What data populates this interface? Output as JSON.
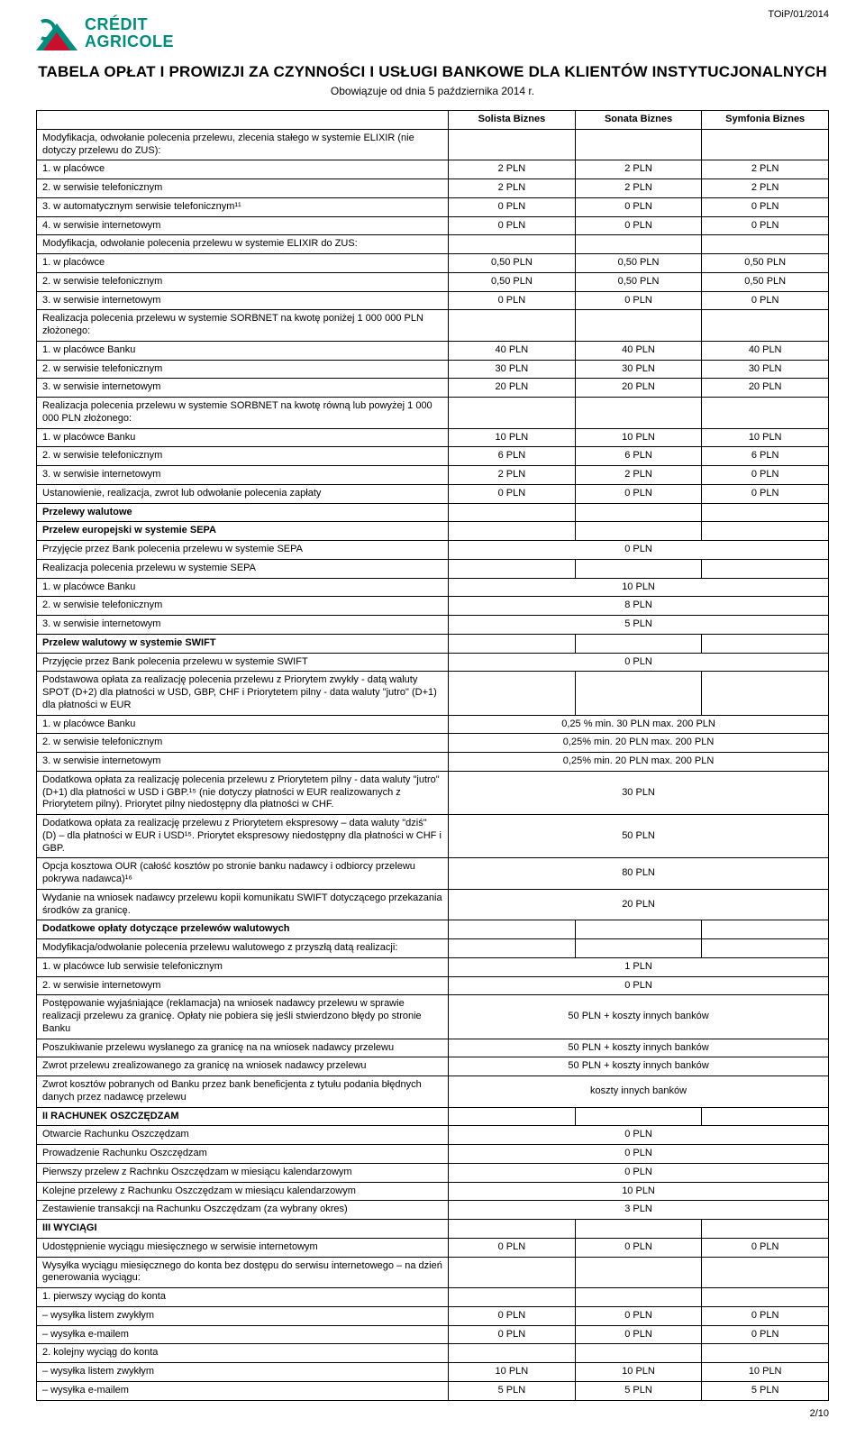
{
  "docref": "TOiP/01/2014",
  "logo": {
    "line1": "CRÉDIT",
    "line2": "AGRICOLE",
    "green": "#008b7d",
    "red": "#c8102e"
  },
  "title": "TABELA OPŁAT I PROWIZJI ZA CZYNNOŚCI I USŁUGI BANKOWE DLA KLIENTÓW INSTYTUCJONALNYCH",
  "subtitle": "Obowiązuje od dnia 5 października 2014 r.",
  "columns": [
    "Solista Biznes",
    "Sonata Biznes",
    "Symfonia Biznes"
  ],
  "rows": [
    {
      "type": "group",
      "desc": "Modyfikacja, odwołanie polecenia przelewu, zlecenia stałego w systemie ELIXIR (nie dotyczy przelewu do ZUS):"
    },
    {
      "type": "row",
      "desc": "1.  w placówce",
      "v": [
        "2 PLN",
        "2 PLN",
        "2 PLN"
      ]
    },
    {
      "type": "row",
      "desc": "2.  w serwisie telefonicznym",
      "v": [
        "2 PLN",
        "2 PLN",
        "2 PLN"
      ]
    },
    {
      "type": "row",
      "desc": "3.  w automatycznym serwisie telefonicznym¹¹",
      "v": [
        "0 PLN",
        "0 PLN",
        "0 PLN"
      ]
    },
    {
      "type": "row",
      "desc": "4.  w serwisie internetowym",
      "v": [
        "0 PLN",
        "0 PLN",
        "0 PLN"
      ]
    },
    {
      "type": "group",
      "desc": "Modyfikacja, odwołanie polecenia przelewu w systemie ELIXIR do ZUS:"
    },
    {
      "type": "row",
      "desc": "1.  w placówce",
      "v": [
        "0,50 PLN",
        "0,50 PLN",
        "0,50 PLN"
      ]
    },
    {
      "type": "row",
      "desc": "2.  w serwisie telefonicznym",
      "v": [
        "0,50 PLN",
        "0,50 PLN",
        "0,50 PLN"
      ]
    },
    {
      "type": "row",
      "desc": "3.  w serwisie internetowym",
      "v": [
        "0 PLN",
        "0 PLN",
        "0 PLN"
      ]
    },
    {
      "type": "group",
      "desc": "Realizacja polecenia przelewu w systemie SORBNET na kwotę poniżej 1 000 000 PLN złożonego:"
    },
    {
      "type": "row",
      "desc": "1.  w placówce Banku",
      "v": [
        "40 PLN",
        "40 PLN",
        "40 PLN"
      ]
    },
    {
      "type": "row",
      "desc": "2.  w serwisie telefonicznym",
      "v": [
        "30 PLN",
        "30 PLN",
        "30 PLN"
      ]
    },
    {
      "type": "row",
      "desc": "3.  w serwisie internetowym",
      "v": [
        "20 PLN",
        "20 PLN",
        "20 PLN"
      ]
    },
    {
      "type": "group",
      "desc": "Realizacja polecenia przelewu w systemie SORBNET na kwotę równą lub powyżej 1 000 000 PLN złożonego:"
    },
    {
      "type": "row",
      "desc": "1.  w placówce Banku",
      "v": [
        "10 PLN",
        "10 PLN",
        "10 PLN"
      ]
    },
    {
      "type": "row",
      "desc": "2.  w serwisie telefonicznym",
      "v": [
        "6 PLN",
        "6 PLN",
        "6 PLN"
      ]
    },
    {
      "type": "row",
      "desc": "3.  w serwisie internetowym",
      "v": [
        "2 PLN",
        "2 PLN",
        "0 PLN"
      ]
    },
    {
      "type": "row",
      "desc": "Ustanowienie, realizacja, zwrot lub odwołanie polecenia zapłaty",
      "v": [
        "0 PLN",
        "0 PLN",
        "0 PLN"
      ]
    },
    {
      "type": "section",
      "desc": "Przelewy walutowe"
    },
    {
      "type": "section",
      "desc": "Przelew europejski w systemie SEPA"
    },
    {
      "type": "merged",
      "desc": "Przyjęcie przez Bank polecenia przelewu w systemie SEPA",
      "m": "0 PLN"
    },
    {
      "type": "group",
      "desc": "Realizacja polecenia przelewu w systemie SEPA"
    },
    {
      "type": "merged",
      "desc": "1.  w placówce Banku",
      "m": "10 PLN"
    },
    {
      "type": "merged",
      "desc": "2.  w serwisie telefonicznym",
      "m": "8 PLN"
    },
    {
      "type": "merged",
      "desc": "3.  w serwisie internetowym",
      "m": "5 PLN"
    },
    {
      "type": "section",
      "desc": "Przelew walutowy w systemie SWIFT"
    },
    {
      "type": "merged",
      "desc": "Przyjęcie przez Bank polecenia przelewu w systemie SWIFT",
      "m": "0 PLN"
    },
    {
      "type": "group",
      "desc": "Podstawowa opłata za realizację polecenia przelewu z Priorytem zwykły - datą waluty SPOT (D+2) dla płatności w USD, GBP, CHF i Priorytetem pilny - data waluty \"jutro\" (D+1) dla płatności w EUR"
    },
    {
      "type": "merged",
      "desc": "1.  w placówce Banku",
      "m": "0,25 % min. 30 PLN max. 200 PLN"
    },
    {
      "type": "merged",
      "desc": "2.  w serwisie telefonicznym",
      "m": "0,25% min. 20 PLN max. 200 PLN"
    },
    {
      "type": "merged",
      "desc": "3.  w serwisie internetowym",
      "m": "0,25% min. 20 PLN max. 200 PLN"
    },
    {
      "type": "merged",
      "desc": "Dodatkowa opłata za realizację polecenia przelewu z Priorytetem pilny - data waluty \"jutro\" (D+1) dla płatności w USD i GBP.¹⁵ (nie dotyczy płatności w EUR realizowanych z Priorytetem pilny). Priorytet pilny niedostępny dla płatności w CHF.",
      "m": "30 PLN"
    },
    {
      "type": "merged",
      "desc": "Dodatkowa opłata za realizację przelewu z Priorytetem ekspresowy – data waluty \"dziś\" (D) – dla płatności w EUR i USD¹⁵. Priorytet ekspresowy niedostępny dla płatności w CHF i GBP.",
      "m": "50 PLN"
    },
    {
      "type": "merged",
      "desc": "Opcja kosztowa OUR (całość kosztów po stronie banku nadawcy i odbiorcy przelewu pokrywa nadawca)¹⁶",
      "m": "80 PLN"
    },
    {
      "type": "merged",
      "desc": "Wydanie na wniosek nadawcy przelewu kopii komunikatu SWIFT dotyczącego przekazania środków za granicę.",
      "m": "20 PLN"
    },
    {
      "type": "section",
      "desc": "Dodatkowe opłaty dotyczące przelewów walutowych"
    },
    {
      "type": "group",
      "desc": "Modyfikacja/odwołanie polecenia przelewu walutowego z przyszłą datą realizacji:"
    },
    {
      "type": "merged",
      "desc": "1.  w placówce lub serwisie telefonicznym",
      "m": "1 PLN"
    },
    {
      "type": "merged",
      "desc": "2.  w serwisie internetowym",
      "m": "0 PLN"
    },
    {
      "type": "merged",
      "desc": "Postępowanie wyjaśniające (reklamacja) na wniosek nadawcy przelewu w sprawie realizacji przelewu za granicę. Opłaty nie pobiera się jeśli stwierdzono błędy po stronie Banku",
      "m": "50 PLN + koszty innych banków"
    },
    {
      "type": "merged",
      "desc": "Poszukiwanie przelewu wysłanego za granicę na na wniosek nadawcy przelewu",
      "m": "50 PLN + koszty innych banków"
    },
    {
      "type": "merged",
      "desc": "Zwrot przelewu zrealizowanego za granicę na wniosek nadawcy przelewu",
      "m": "50 PLN + koszty innych banków"
    },
    {
      "type": "merged",
      "desc": "Zwrot kosztów pobranych od Banku przez bank beneficjenta z tytułu podania błędnych danych przez nadawcę przelewu",
      "m": "koszty innych banków"
    },
    {
      "type": "section",
      "desc": "II RACHUNEK OSZCZĘDZAM"
    },
    {
      "type": "merged",
      "desc": "Otwarcie Rachunku Oszczędzam",
      "m": "0 PLN"
    },
    {
      "type": "merged",
      "desc": "Prowadzenie Rachunku Oszczędzam",
      "m": "0 PLN"
    },
    {
      "type": "merged",
      "desc": "Pierwszy przelew z Rachnku Oszczędzam w miesiącu kalendarzowym",
      "m": "0 PLN"
    },
    {
      "type": "merged",
      "desc": "Kolejne przelewy z Rachunku Oszczędzam w miesiącu kalendarzowym",
      "m": "10 PLN"
    },
    {
      "type": "merged",
      "desc": "Zestawienie transakcji na Rachunku Oszczędzam (za wybrany okres)",
      "m": "3 PLN"
    },
    {
      "type": "section",
      "desc": "III WYCIĄGI"
    },
    {
      "type": "row",
      "desc": "Udostępnienie wyciągu miesięcznego w serwisie internetowym",
      "v": [
        "0 PLN",
        "0 PLN",
        "0 PLN"
      ]
    },
    {
      "type": "group",
      "desc": "Wysyłka wyciągu miesięcznego do konta bez dostępu do serwisu internetowego – na dzień generowania wyciągu:"
    },
    {
      "type": "group",
      "desc": "1.  pierwszy wyciąg do konta"
    },
    {
      "type": "row",
      "desc": "     –    wysyłka listem zwykłym",
      "v": [
        "0 PLN",
        "0 PLN",
        "0 PLN"
      ]
    },
    {
      "type": "row",
      "desc": "     –    wysyłka e-mailem",
      "v": [
        "0 PLN",
        "0 PLN",
        "0 PLN"
      ]
    },
    {
      "type": "group",
      "desc": "2. kolejny wyciąg do konta"
    },
    {
      "type": "row",
      "desc": "     –    wysyłka listem zwykłym",
      "v": [
        "10 PLN",
        "10 PLN",
        "10 PLN"
      ]
    },
    {
      "type": "row",
      "desc": "     –    wysyłka e-mailem",
      "v": [
        "5 PLN",
        "5 PLN",
        "5 PLN"
      ]
    }
  ],
  "pagenum": "2/10"
}
